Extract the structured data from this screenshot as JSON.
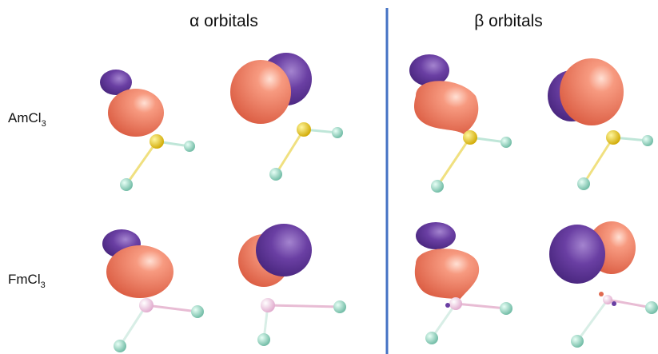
{
  "header": {
    "alpha": "α orbitals",
    "beta": "β orbitals"
  },
  "rows": [
    {
      "label": "AmCl",
      "subscript": "3"
    },
    {
      "label": "FmCl",
      "subscript": "3"
    }
  ]
}
